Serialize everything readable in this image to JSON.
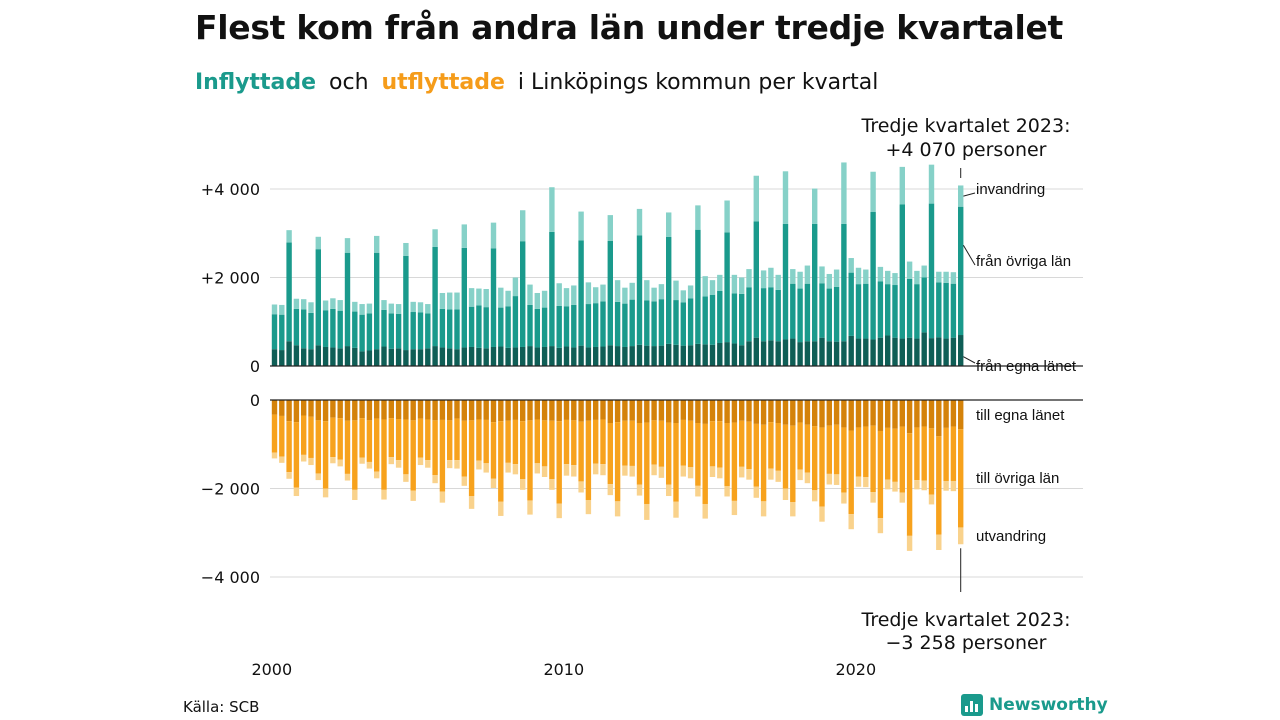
{
  "title": "Flest kom från andra län under tredje kvartalet",
  "subtitle": {
    "inflyttade": "Inflyttade",
    "och": "och",
    "utflyttade": "utflyttade",
    "rest": "i Linköpings kommun per kvartal"
  },
  "source": "Källa: SCB",
  "brand": "Newsworthy",
  "colors": {
    "in_eget": "#0f5e56",
    "in_ovriga": "#1a9a8c",
    "in_invandring": "#86d1c8",
    "out_eget": "#d4820a",
    "out_ovriga": "#f7a21d",
    "out_utvandring": "#f9d28c"
  },
  "chart_data": {
    "type": "bar",
    "stacked": true,
    "x_ticks": [
      "2000",
      "2010",
      "2020"
    ],
    "y_ticks": [
      "+4 000",
      "+2 000",
      "0",
      "0",
      "−2 000",
      "−4 000"
    ],
    "y_tick_values": [
      4000,
      2000,
      0,
      0,
      -2000,
      -4000
    ],
    "ylim_in": [
      0,
      4000
    ],
    "ylim_out": [
      -4000,
      0
    ],
    "grid": true,
    "callout_in": [
      "Tredje kvartalet 2023:",
      "+4 070 personer"
    ],
    "callout_out": [
      "Tredje kvartalet 2023:",
      "−3 258 personer"
    ],
    "labels_in": [
      "invandring",
      "från övriga län",
      "från egna länet"
    ],
    "labels_out": [
      "till egna länet",
      "till övriga län",
      "utvandring"
    ],
    "start_year": 2000,
    "quarters": 95,
    "series_in": [
      {
        "name": "från egna länet",
        "values": [
          380,
          360,
          560,
          470,
          400,
          380,
          470,
          430,
          420,
          400,
          450,
          410,
          330,
          350,
          380,
          440,
          390,
          400,
          360,
          380,
          380,
          400,
          450,
          420,
          400,
          380,
          420,
          430,
          410,
          400,
          430,
          440,
          410,
          420,
          430,
          450,
          420,
          430,
          450,
          410,
          440,
          420,
          460,
          420,
          430,
          440,
          470,
          450,
          430,
          450,
          480,
          460,
          450,
          460,
          500,
          480,
          460,
          470,
          500,
          490,
          480,
          520,
          540,
          510,
          470,
          560,
          640,
          560,
          580,
          560,
          600,
          620,
          540,
          560,
          560,
          640,
          560,
          550,
          560,
          680,
          620,
          620,
          600,
          640,
          690,
          640,
          620,
          640,
          620,
          760,
          630,
          650,
          620,
          640,
          700
        ]
      },
      {
        "name": "från övriga län",
        "values": [
          790,
          800,
          2230,
          820,
          880,
          820,
          2170,
          830,
          870,
          850,
          2110,
          820,
          830,
          840,
          2180,
          830,
          800,
          780,
          2130,
          840,
          830,
          790,
          2240,
          870,
          880,
          900,
          2250,
          910,
          960,
          930,
          2230,
          880,
          940,
          1160,
          2390,
          930,
          870,
          890,
          2580,
          950,
          910,
          960,
          2380,
          980,
          990,
          1020,
          2360,
          1000,
          980,
          1050,
          2470,
          1020,
          1010,
          1050,
          2420,
          1010,
          980,
          1060,
          2580,
          1080,
          1130,
          1180,
          2480,
          1130,
          1160,
          1220,
          2630,
          1200,
          1200,
          1160,
          2610,
          1240,
          1210,
          1300,
          2650,
          1230,
          1190,
          1240,
          2650,
          1430,
          1230,
          1240,
          2880,
          1270,
          1160,
          1190,
          3030,
          1330,
          1230,
          1240,
          3040,
          1240,
          1260,
          1220,
          2900
        ]
      },
      {
        "name": "invandring",
        "values": [
          220,
          220,
          280,
          230,
          230,
          240,
          280,
          220,
          240,
          240,
          330,
          220,
          240,
          220,
          380,
          220,
          220,
          220,
          290,
          230,
          230,
          210,
          400,
          360,
          380,
          380,
          530,
          420,
          380,
          410,
          580,
          450,
          350,
          420,
          700,
          460,
          360,
          380,
          1010,
          510,
          410,
          440,
          650,
          490,
          360,
          380,
          580,
          490,
          360,
          380,
          600,
          460,
          310,
          340,
          550,
          440,
          270,
          290,
          550,
          460,
          330,
          360,
          720,
          420,
          370,
          410,
          1030,
          400,
          440,
          340,
          1190,
          330,
          380,
          410,
          800,
          380,
          330,
          390,
          1390,
          330,
          370,
          320,
          910,
          330,
          300,
          270,
          850,
          390,
          300,
          270,
          880,
          240,
          250,
          260,
          480
        ]
      }
    ],
    "series_out": [
      {
        "name": "till egna länet",
        "values": [
          -330,
          -360,
          -480,
          -500,
          -350,
          -380,
          -460,
          -480,
          -400,
          -410,
          -470,
          -460,
          -410,
          -460,
          -420,
          -440,
          -410,
          -430,
          -440,
          -460,
          -420,
          -440,
          -460,
          -450,
          -460,
          -420,
          -470,
          -460,
          -440,
          -450,
          -500,
          -480,
          -470,
          -450,
          -480,
          -460,
          -440,
          -460,
          -470,
          -480,
          -450,
          -460,
          -490,
          -470,
          -450,
          -440,
          -520,
          -500,
          -470,
          -470,
          -520,
          -510,
          -460,
          -470,
          -510,
          -520,
          -450,
          -470,
          -520,
          -540,
          -480,
          -480,
          -520,
          -510,
          -470,
          -490,
          -540,
          -560,
          -500,
          -520,
          -560,
          -580,
          -510,
          -560,
          -590,
          -620,
          -580,
          -560,
          -620,
          -690,
          -620,
          -600,
          -580,
          -700,
          -630,
          -650,
          -600,
          -750,
          -620,
          -600,
          -640,
          -820,
          -630,
          -600,
          -660
        ]
      },
      {
        "name": "till övriga län",
        "values": [
          -860,
          -920,
          -1150,
          -1480,
          -890,
          -930,
          -1200,
          -1520,
          -890,
          -940,
          -1200,
          -1570,
          -890,
          -940,
          -1200,
          -1590,
          -880,
          -930,
          -1240,
          -1590,
          -880,
          -920,
          -1240,
          -1620,
          -900,
          -940,
          -1260,
          -1710,
          -930,
          -980,
          -1280,
          -1820,
          -950,
          -1000,
          -1310,
          -1810,
          -990,
          -1040,
          -1320,
          -1860,
          -1000,
          -1010,
          -1350,
          -1790,
          -990,
          -1010,
          -1380,
          -1790,
          -1010,
          -1020,
          -1390,
          -1840,
          -1000,
          -1040,
          -1400,
          -1780,
          -1030,
          -1050,
          -1420,
          -1810,
          -1020,
          -1050,
          -1430,
          -1770,
          -1040,
          -1070,
          -1420,
          -1730,
          -1050,
          -1080,
          -1440,
          -1730,
          -1060,
          -1080,
          -1450,
          -1790,
          -1090,
          -1120,
          -1470,
          -1890,
          -1110,
          -1140,
          -1500,
          -1970,
          -1170,
          -1200,
          -1490,
          -2320,
          -1190,
          -1220,
          -1500,
          -2220,
          -1200,
          -1230,
          -2220
        ]
      },
      {
        "name": "utvandring",
        "values": [
          -130,
          -140,
          -150,
          -190,
          -150,
          -160,
          -150,
          -200,
          -140,
          -150,
          -150,
          -230,
          -140,
          -150,
          -150,
          -220,
          -160,
          -170,
          -170,
          -230,
          -170,
          -170,
          -180,
          -250,
          -180,
          -190,
          -210,
          -290,
          -200,
          -210,
          -210,
          -320,
          -220,
          -230,
          -240,
          -320,
          -230,
          -240,
          -240,
          -330,
          -260,
          -260,
          -250,
          -320,
          -240,
          -250,
          -250,
          -340,
          -230,
          -240,
          -250,
          -360,
          -240,
          -250,
          -260,
          -360,
          -250,
          -250,
          -240,
          -330,
          -240,
          -240,
          -230,
          -320,
          -240,
          -240,
          -250,
          -340,
          -250,
          -250,
          -260,
          -320,
          -240,
          -240,
          -250,
          -340,
          -240,
          -240,
          -250,
          -340,
          -230,
          -230,
          -240,
          -340,
          -220,
          -220,
          -230,
          -340,
          -210,
          -220,
          -220,
          -350,
          -220,
          -230,
          -380
        ]
      }
    ]
  }
}
